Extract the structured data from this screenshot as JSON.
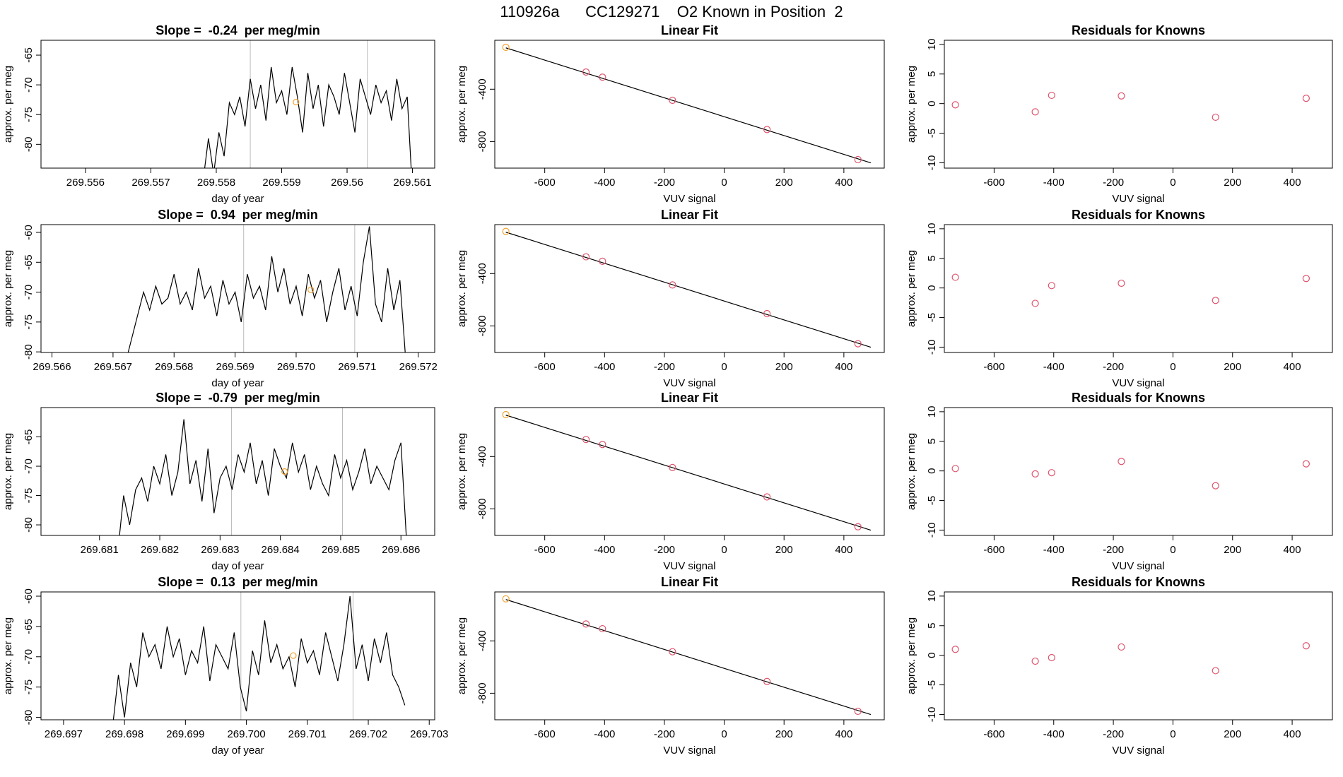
{
  "title": "110926a      CC129271    O2 Known in Position  2",
  "chart_data": [
    {
      "type": "line",
      "title": "Slope =  -0.24  per meg/min",
      "xlabel": "day of year",
      "ylabel": "approx. per meg",
      "xlim": [
        269.55532,
        269.56134
      ],
      "ylim": [
        -84,
        -62.5
      ],
      "xticks": [
        269.556,
        269.557,
        269.558,
        269.559,
        269.56,
        269.561
      ],
      "yticks": [
        -80,
        -75,
        -70,
        -65
      ],
      "x": [
        269.5578,
        269.55788,
        269.55796,
        269.55804,
        269.55812,
        269.5582,
        269.55828,
        269.55836,
        269.55844,
        269.55852,
        269.5586,
        269.55868,
        269.55876,
        269.55884,
        269.55892,
        269.559,
        269.55908,
        269.55916,
        269.55924,
        269.55932,
        269.5594,
        269.55948,
        269.55956,
        269.55964,
        269.55972,
        269.5598,
        269.55988,
        269.55996,
        269.56004,
        269.56012,
        269.5602,
        269.56028,
        269.56036,
        269.56044,
        269.56052,
        269.5606,
        269.56068,
        269.56076,
        269.56084,
        269.56092,
        269.561
      ],
      "series": [
        {
          "color": "#000000",
          "values": [
            -86,
            -79,
            -85,
            -78,
            -82,
            -73,
            -75,
            -72,
            -77,
            -69,
            -74,
            -70,
            -76,
            -67,
            -73,
            -71,
            -75,
            -67,
            -72,
            -78,
            -68,
            -74,
            -70,
            -77,
            -70,
            -72,
            -75,
            -68,
            -73,
            -78,
            -69,
            -72,
            -75,
            -70,
            -73,
            -71,
            -76,
            -69,
            -74,
            -72,
            -88
          ]
        }
      ],
      "vlines": [
        269.55852,
        269.56031
      ],
      "marker": {
        "x": 269.55922,
        "y": -72.9,
        "color": "#f2a22e"
      }
    },
    {
      "type": "scatter",
      "title": "Linear Fit",
      "xlabel": "VUV signal",
      "ylabel": "approx. per meg",
      "xlim": [
        -767,
        535
      ],
      "ylim": [
        -1003,
        -26
      ],
      "xticks": [
        -600,
        -400,
        -200,
        0,
        200,
        400
      ],
      "yticks": [
        -800,
        -400
      ],
      "series": [
        {
          "color": "#f2a22e",
          "x": [
            -730
          ],
          "values": [
            -80
          ]
        },
        {
          "color": "#df536b",
          "x": [
            -462,
            -407,
            -173,
            143,
            447
          ],
          "values": [
            -269,
            -308,
            -485,
            -708,
            -938
          ]
        }
      ],
      "fit_line": {
        "color": "#000000",
        "x": [
          -730,
          490
        ],
        "values": [
          -84,
          -963
        ]
      }
    },
    {
      "type": "scatter",
      "title": "Residuals for Knowns",
      "xlabel": "VUV signal",
      "ylabel": "approx. per meg",
      "xlim": [
        -767,
        535
      ],
      "ylim": [
        -10.9,
        10.7
      ],
      "xticks": [
        -600,
        -400,
        -200,
        0,
        200,
        400
      ],
      "yticks": [
        -10,
        -5,
        0,
        5,
        10
      ],
      "series": [
        {
          "color": "#df536b",
          "x": [
            -730,
            -462,
            -407,
            -173,
            143,
            447
          ],
          "values": [
            -0.2,
            -1.4,
            1.4,
            1.3,
            -2.3,
            0.9
          ]
        }
      ]
    },
    {
      "type": "line",
      "title": "Slope =  0.94  per meg/min",
      "xlabel": "day of year",
      "ylabel": "approx. per meg",
      "xlim": [
        269.56582,
        269.57227
      ],
      "ylim": [
        -80.1,
        -58.7
      ],
      "xticks": [
        269.566,
        269.567,
        269.568,
        269.569,
        {
          "value": 269.57,
          "label": "269.570"
        },
        269.571,
        269.572
      ],
      "yticks": [
        -80,
        -75,
        -70,
        -65,
        -60
      ],
      "x": [
        269.5672,
        269.5673,
        269.5674,
        269.5675,
        269.5676,
        269.5677,
        269.5678,
        269.5679,
        269.568,
        269.5681,
        269.5682,
        269.5683,
        269.5684,
        269.5685,
        269.5686,
        269.5687,
        269.5688,
        269.5689,
        269.569,
        269.5691,
        269.5692,
        269.5693,
        269.5694,
        269.5695,
        269.5696,
        269.5697,
        269.5698,
        269.5699,
        269.57,
        269.5701,
        269.5702,
        269.5703,
        269.5704,
        269.5705,
        269.5706,
        269.5707,
        269.5708,
        269.5709,
        269.571,
        269.5711,
        269.5712,
        269.5713,
        269.5714,
        269.5715,
        269.5716,
        269.5717,
        269.5718
      ],
      "series": [
        {
          "color": "#000000",
          "values": [
            -82,
            -78,
            -74,
            -70,
            -73,
            -69,
            -72,
            -71,
            -67,
            -72,
            -70,
            -73,
            -66,
            -71,
            -69,
            -74,
            -68,
            -72,
            -70,
            -75,
            -67,
            -71,
            -69,
            -73,
            -64,
            -70,
            -66,
            -72,
            -69,
            -74,
            -67,
            -71,
            -68,
            -75,
            -70,
            -66,
            -73,
            -69,
            -74,
            -65,
            -59,
            -72,
            -75,
            -66,
            -73,
            -68,
            -82
          ]
        }
      ],
      "vlines": [
        269.56914,
        269.57096
      ],
      "marker": {
        "x": 269.57024,
        "y": -69.6,
        "color": "#f2a22e"
      }
    },
    {
      "type": "scatter",
      "title": "Linear Fit",
      "xlabel": "VUV signal",
      "ylabel": "approx. per meg",
      "xlim": [
        -767,
        535
      ],
      "ylim": [
        -1003,
        -26
      ],
      "xticks": [
        -600,
        -400,
        -200,
        0,
        200,
        400
      ],
      "yticks": [
        -800,
        -400
      ],
      "series": [
        {
          "color": "#f2a22e",
          "x": [
            -730
          ],
          "values": [
            -78
          ]
        },
        {
          "color": "#df536b",
          "x": [
            -462,
            -407,
            -173,
            143,
            447
          ],
          "values": [
            -272,
            -306,
            -487,
            -706,
            -936
          ]
        }
      ],
      "fit_line": {
        "color": "#000000",
        "x": [
          -730,
          490
        ],
        "values": [
          -84,
          -963
        ]
      }
    },
    {
      "type": "scatter",
      "title": "Residuals for Knowns",
      "xlabel": "VUV signal",
      "ylabel": "approx. per meg",
      "xlim": [
        -767,
        535
      ],
      "ylim": [
        -10.9,
        10.7
      ],
      "xticks": [
        -600,
        -400,
        -200,
        0,
        200,
        400
      ],
      "yticks": [
        -10,
        -5,
        0,
        5,
        10
      ],
      "series": [
        {
          "color": "#df536b",
          "x": [
            -730,
            -462,
            -407,
            -173,
            143,
            447
          ],
          "values": [
            1.8,
            -2.6,
            0.4,
            0.8,
            -2.1,
            1.6
          ]
        }
      ]
    },
    {
      "type": "line",
      "title": "Slope =  -0.79  per meg/min",
      "xlabel": "day of year",
      "ylabel": "approx. per meg",
      "xlim": [
        269.68003,
        269.68656
      ],
      "ylim": [
        -81.8,
        -60
      ],
      "xticks": [
        269.681,
        269.682,
        269.683,
        269.684,
        269.685,
        269.686
      ],
      "yticks": [
        -80,
        -75,
        -70,
        -65
      ],
      "x": [
        269.6813,
        269.6814,
        269.6815,
        269.6816,
        269.6817,
        269.6818,
        269.6819,
        269.682,
        269.6821,
        269.6822,
        269.6823,
        269.6824,
        269.6825,
        269.6826,
        269.6827,
        269.6828,
        269.6829,
        269.683,
        269.6831,
        269.6832,
        269.6833,
        269.6834,
        269.6835,
        269.6836,
        269.6837,
        269.6838,
        269.6839,
        269.684,
        269.6841,
        269.6842,
        269.6843,
        269.6844,
        269.6845,
        269.6846,
        269.6847,
        269.6848,
        269.6849,
        269.685,
        269.6851,
        269.6852,
        269.6853,
        269.6854,
        269.6855,
        269.6856,
        269.6857,
        269.6858,
        269.6859,
        269.686,
        269.6861
      ],
      "series": [
        {
          "color": "#000000",
          "values": [
            -85,
            -75,
            -80,
            -74,
            -72,
            -76,
            -70,
            -73,
            -68,
            -75,
            -71,
            -62,
            -73,
            -69,
            -76,
            -67,
            -78,
            -72,
            -70,
            -74,
            -68,
            -71,
            -66,
            -73,
            -69,
            -75,
            -67,
            -70,
            -72,
            -66,
            -71,
            -68,
            -74,
            -70,
            -73,
            -75,
            -68,
            -72,
            -69,
            -74,
            -71,
            -67,
            -73,
            -70,
            -72,
            -74,
            -69,
            -66,
            -84
          ]
        }
      ],
      "vlines": [
        269.68319,
        269.68503
      ],
      "marker": {
        "x": 269.68407,
        "y": -70.9,
        "color": "#f2a22e"
      }
    },
    {
      "type": "scatter",
      "title": "Linear Fit",
      "xlabel": "VUV signal",
      "ylabel": "approx. per meg",
      "xlim": [
        -767,
        535
      ],
      "ylim": [
        -1003,
        -26
      ],
      "xticks": [
        -600,
        -400,
        -200,
        0,
        200,
        400
      ],
      "yticks": [
        -800,
        -400
      ],
      "series": [
        {
          "color": "#f2a22e",
          "x": [
            -730
          ],
          "values": [
            -80
          ]
        },
        {
          "color": "#df536b",
          "x": [
            -462,
            -407,
            -173,
            143,
            447
          ],
          "values": [
            -270,
            -308,
            -484,
            -709,
            -937
          ]
        }
      ],
      "fit_line": {
        "color": "#000000",
        "x": [
          -730,
          490
        ],
        "values": [
          -84,
          -963
        ]
      }
    },
    {
      "type": "scatter",
      "title": "Residuals for Knowns",
      "xlabel": "VUV signal",
      "ylabel": "approx. per meg",
      "xlim": [
        -767,
        535
      ],
      "ylim": [
        -10.9,
        10.7
      ],
      "xticks": [
        -600,
        -400,
        -200,
        0,
        200,
        400
      ],
      "yticks": [
        -10,
        -5,
        0,
        5,
        10
      ],
      "series": [
        {
          "color": "#df536b",
          "x": [
            -730,
            -462,
            -407,
            -173,
            143,
            447
          ],
          "values": [
            0.4,
            -0.5,
            -0.3,
            1.6,
            -2.5,
            1.2
          ]
        }
      ]
    },
    {
      "type": "line",
      "title": "Slope =  0.13  per meg/min",
      "xlabel": "day of year",
      "ylabel": "approx. per meg",
      "xlim": [
        269.69663,
        269.70309
      ],
      "ylim": [
        -80.4,
        -59.3
      ],
      "xticks": [
        269.697,
        269.698,
        269.699,
        {
          "value": 269.7,
          "label": "269.700"
        },
        269.701,
        269.702,
        269.703
      ],
      "yticks": [
        -80,
        -75,
        -70,
        -65,
        -60
      ],
      "x": [
        269.6978,
        269.6979,
        269.698,
        269.6981,
        269.6982,
        269.6983,
        269.6984,
        269.6985,
        269.6986,
        269.6987,
        269.6988,
        269.6989,
        269.699,
        269.6991,
        269.6992,
        269.6993,
        269.6994,
        269.6995,
        269.6996,
        269.6997,
        269.6998,
        269.6999,
        269.7,
        269.7001,
        269.7002,
        269.7003,
        269.7004,
        269.7005,
        269.7006,
        269.7007,
        269.7008,
        269.7009,
        269.701,
        269.7011,
        269.7012,
        269.7013,
        269.7014,
        269.7015,
        269.7016,
        269.7017,
        269.7018,
        269.7019,
        269.702,
        269.7021,
        269.7022,
        269.7023,
        269.7024,
        269.7025,
        269.7026
      ],
      "series": [
        {
          "color": "#000000",
          "values": [
            -82,
            -73,
            -80,
            -71,
            -75,
            -66,
            -70,
            -68,
            -72,
            -65,
            -70,
            -67,
            -73,
            -69,
            -71,
            -65,
            -74,
            -68,
            -70,
            -72,
            -66,
            -75,
            -79,
            -69,
            -73,
            -64,
            -71,
            -68,
            -72,
            -70,
            -75,
            -67,
            -71,
            -69,
            -73,
            -66,
            -70,
            -74,
            -68,
            -60,
            -72,
            -68,
            -74,
            -67,
            -71,
            -66,
            -73,
            -75,
            -78
          ]
        }
      ],
      "vlines": [
        269.69991,
        269.70175
      ],
      "marker": {
        "x": 269.70077,
        "y": -69.8,
        "color": "#f2a22e"
      }
    },
    {
      "type": "scatter",
      "title": "Linear Fit",
      "xlabel": "VUV signal",
      "ylabel": "approx. per meg",
      "xlim": [
        -767,
        535
      ],
      "ylim": [
        -1003,
        -26
      ],
      "xticks": [
        -600,
        -400,
        -200,
        0,
        200,
        400
      ],
      "yticks": [
        -800,
        -400
      ],
      "series": [
        {
          "color": "#f2a22e",
          "x": [
            -730
          ],
          "values": [
            -79
          ]
        },
        {
          "color": "#df536b",
          "x": [
            -462,
            -407,
            -173,
            143,
            447
          ],
          "values": [
            -271,
            -307,
            -483,
            -710,
            -938
          ]
        }
      ],
      "fit_line": {
        "color": "#000000",
        "x": [
          -730,
          490
        ],
        "values": [
          -84,
          -963
        ]
      }
    },
    {
      "type": "scatter",
      "title": "Residuals for Knowns",
      "xlabel": "VUV signal",
      "ylabel": "approx. per meg",
      "xlim": [
        -767,
        535
      ],
      "ylim": [
        -10.9,
        10.7
      ],
      "xticks": [
        -600,
        -400,
        -200,
        0,
        200,
        400
      ],
      "yticks": [
        -10,
        -5,
        0,
        5,
        10
      ],
      "series": [
        {
          "color": "#df536b",
          "x": [
            -730,
            -462,
            -407,
            -173,
            143,
            447
          ],
          "values": [
            1.0,
            -1.0,
            -0.4,
            1.4,
            -2.6,
            1.6
          ]
        }
      ]
    }
  ]
}
